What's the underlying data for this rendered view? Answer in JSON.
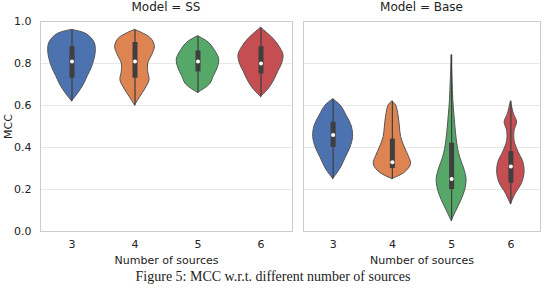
{
  "caption": "Figure 5: MCC w.r.t. different number of sources",
  "chart_data": [
    {
      "type": "violin",
      "title": "Model = SS",
      "x_label": "Number of sources",
      "y_label": "MCC",
      "xlim": [
        2.5,
        6.5
      ],
      "xticks": [
        3,
        4,
        5,
        6
      ],
      "ylim": [
        0,
        1
      ],
      "yticks": [
        {
          "value": 0,
          "label": "0.0"
        },
        0.2,
        0.4,
        0.6,
        0.8,
        {
          "value": 1,
          "label": "1.0"
        }
      ],
      "grid": true,
      "violins": [
        {
          "category": 3,
          "color": "#4c72b0",
          "y": [
            0.62,
            0.66,
            0.7,
            0.74,
            0.78,
            0.82,
            0.86,
            0.9,
            0.94,
            0.96
          ],
          "density": [
            0,
            0.25,
            0.45,
            0.6,
            0.75,
            0.85,
            0.9,
            0.85,
            0.55,
            0
          ],
          "box": [
            0.73,
            0.81,
            0.88
          ],
          "whisker": [
            0.62,
            0.96
          ]
        },
        {
          "category": 4,
          "color": "#dd8452",
          "y": [
            0.6,
            0.64,
            0.68,
            0.72,
            0.76,
            0.8,
            0.84,
            0.88,
            0.92,
            0.96
          ],
          "density": [
            0,
            0.2,
            0.4,
            0.55,
            0.5,
            0.5,
            0.65,
            0.75,
            0.6,
            0
          ],
          "box": [
            0.73,
            0.81,
            0.9
          ],
          "whisker": [
            0.6,
            0.96
          ]
        },
        {
          "category": 5,
          "color": "#55a868",
          "y": [
            0.66,
            0.7,
            0.74,
            0.78,
            0.82,
            0.86,
            0.9,
            0.93
          ],
          "density": [
            0,
            0.45,
            0.6,
            0.75,
            0.8,
            0.65,
            0.4,
            0
          ],
          "box": [
            0.76,
            0.81,
            0.86
          ],
          "whisker": [
            0.66,
            0.93
          ]
        },
        {
          "category": 6,
          "color": "#c44e52",
          "y": [
            0.64,
            0.68,
            0.72,
            0.76,
            0.8,
            0.84,
            0.88,
            0.92,
            0.97
          ],
          "density": [
            0,
            0.3,
            0.5,
            0.65,
            0.8,
            0.85,
            0.7,
            0.45,
            0
          ],
          "box": [
            0.75,
            0.8,
            0.88
          ],
          "whisker": [
            0.64,
            0.97
          ]
        }
      ]
    },
    {
      "type": "violin",
      "title": "Model = Base",
      "x_label": "Number of sources",
      "xlim": [
        2.5,
        6.5
      ],
      "xticks": [
        3,
        4,
        5,
        6
      ],
      "ylim": [
        0,
        1
      ],
      "yticks": [
        {
          "value": 0,
          "label": "0.0"
        },
        0.2,
        0.4,
        0.6,
        0.8,
        {
          "value": 1,
          "label": "1.0"
        }
      ],
      "grid": true,
      "tick_labels": "x",
      "violins": [
        {
          "category": 3,
          "color": "#4c72b0",
          "y": [
            0.25,
            0.3,
            0.35,
            0.4,
            0.45,
            0.5,
            0.55,
            0.6,
            0.63
          ],
          "density": [
            0,
            0.3,
            0.5,
            0.7,
            0.8,
            0.75,
            0.55,
            0.3,
            0
          ],
          "box": [
            0.4,
            0.46,
            0.52
          ],
          "whisker": [
            0.25,
            0.63
          ]
        },
        {
          "category": 4,
          "color": "#dd8452",
          "y": [
            0.25,
            0.28,
            0.32,
            0.36,
            0.4,
            0.45,
            0.5,
            0.55,
            0.6,
            0.62
          ],
          "density": [
            0,
            0.5,
            0.75,
            0.65,
            0.5,
            0.35,
            0.3,
            0.25,
            0.15,
            0
          ],
          "box": [
            0.3,
            0.33,
            0.44
          ],
          "whisker": [
            0.25,
            0.62
          ]
        },
        {
          "category": 5,
          "color": "#55a868",
          "y": [
            0.05,
            0.1,
            0.15,
            0.2,
            0.25,
            0.3,
            0.35,
            0.4,
            0.5,
            0.6,
            0.7,
            0.84
          ],
          "density": [
            0,
            0.2,
            0.4,
            0.55,
            0.6,
            0.5,
            0.35,
            0.25,
            0.15,
            0.08,
            0.04,
            0
          ],
          "box": [
            0.2,
            0.25,
            0.42
          ],
          "whisker": [
            0.05,
            0.84
          ]
        },
        {
          "category": 6,
          "color": "#c44e52",
          "y": [
            0.13,
            0.18,
            0.23,
            0.28,
            0.33,
            0.38,
            0.43,
            0.48,
            0.52,
            0.56,
            0.62
          ],
          "density": [
            0,
            0.2,
            0.45,
            0.55,
            0.5,
            0.3,
            0.15,
            0.15,
            0.25,
            0.12,
            0
          ],
          "box": [
            0.23,
            0.31,
            0.38
          ],
          "whisker": [
            0.13,
            0.62
          ]
        }
      ]
    }
  ]
}
